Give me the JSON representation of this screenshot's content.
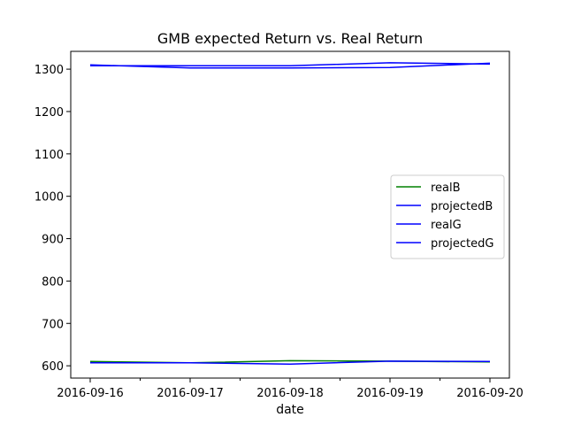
{
  "chart_data": {
    "type": "line",
    "title": "GMB expected Return vs. Real Return",
    "xlabel": "date",
    "ylabel": "",
    "x": [
      "2016-09-16",
      "2016-09-17",
      "2016-09-18",
      "2016-09-19",
      "2016-09-20"
    ],
    "xlim": [
      "2016-09-16",
      "2016-09-20"
    ],
    "ylim": [
      571,
      1342
    ],
    "yticks": [
      600,
      700,
      800,
      900,
      1000,
      1100,
      1200,
      1300
    ],
    "grid": false,
    "legend_position": "center-right",
    "series": [
      {
        "name": "realB",
        "color": "#008000",
        "values": [
          610,
          607,
          612,
          611,
          609
        ]
      },
      {
        "name": "projectedB",
        "color": "#0000ff",
        "values": [
          607,
          607,
          604,
          611,
          610
        ]
      },
      {
        "name": "realG",
        "color": "#0000ff",
        "values": [
          1310,
          1303,
          1303,
          1304,
          1314
        ]
      },
      {
        "name": "projectedG",
        "color": "#0000ff",
        "values": [
          1308,
          1308,
          1308,
          1315,
          1312
        ]
      }
    ]
  }
}
